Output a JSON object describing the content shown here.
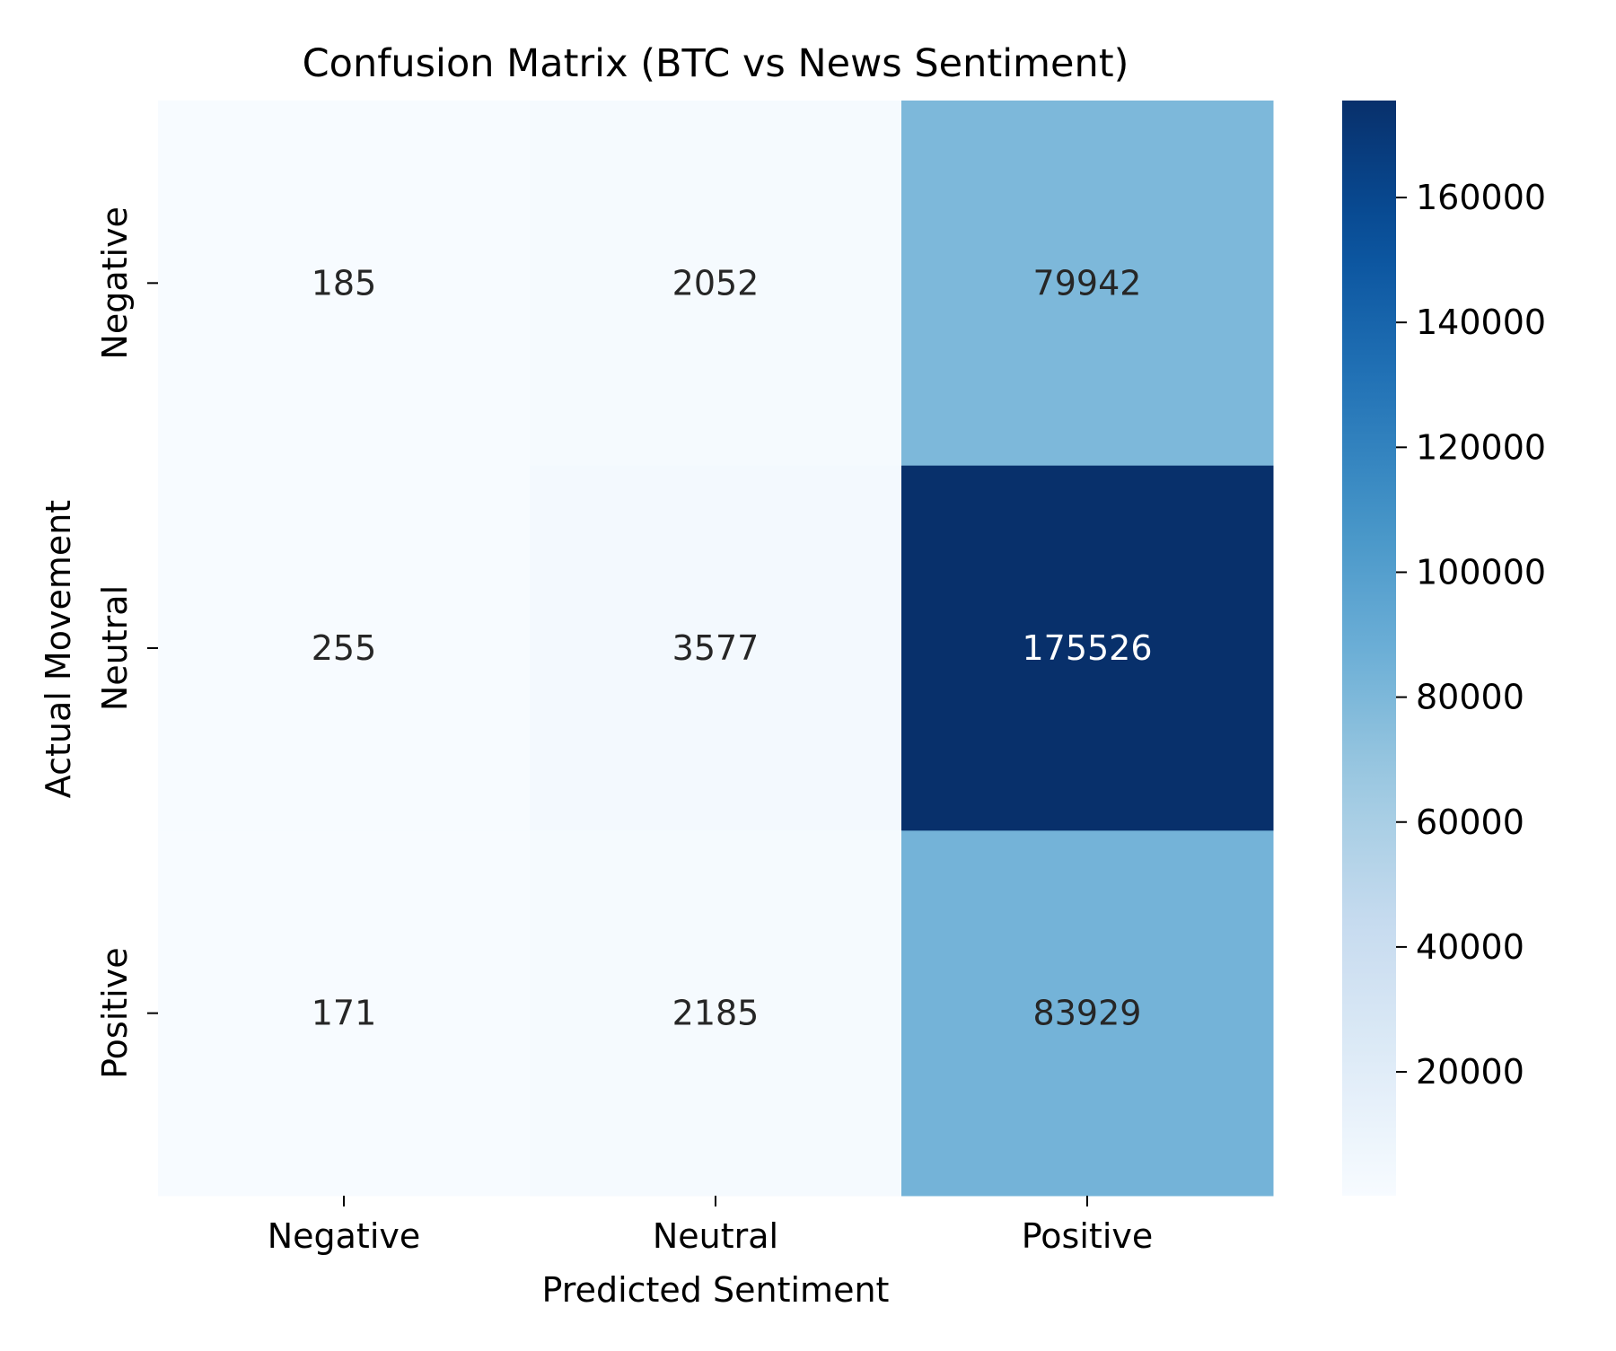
{
  "chart_data": {
    "type": "heatmap",
    "title": "Confusion Matrix (BTC vs News Sentiment)",
    "xlabel": "Predicted Sentiment",
    "ylabel": "Actual Movement",
    "x_categories": [
      "Negative",
      "Neutral",
      "Positive"
    ],
    "y_categories": [
      "Negative",
      "Neutral",
      "Positive"
    ],
    "values": [
      [
        185,
        2052,
        79942
      ],
      [
        255,
        3577,
        175526
      ],
      [
        171,
        2185,
        83929
      ]
    ],
    "colormap": "Blues",
    "color_range": [
      171,
      175526
    ],
    "colorbar_ticks": [
      20000,
      40000,
      60000,
      80000,
      100000,
      120000,
      140000,
      160000
    ],
    "colorbar_tick_labels": [
      "20000",
      "40000",
      "60000",
      "80000",
      "100000",
      "120000",
      "140000",
      "160000"
    ],
    "annotation_colors": {
      "light": "#262626",
      "dark": "#ffffff"
    }
  }
}
